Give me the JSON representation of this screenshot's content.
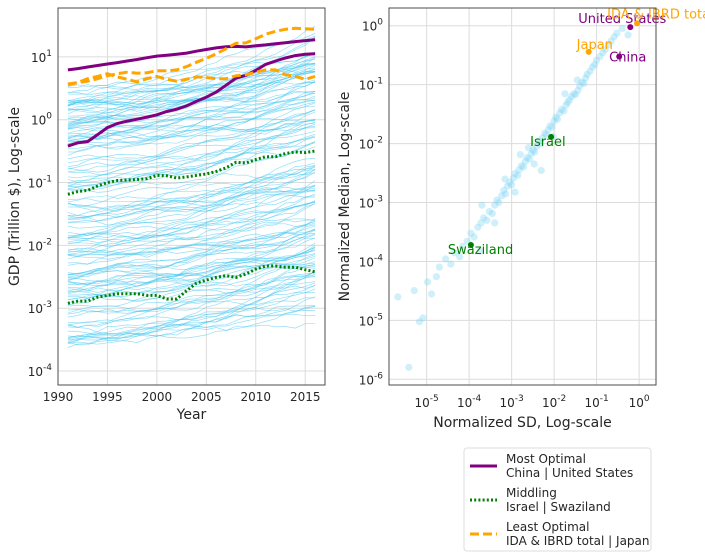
{
  "chart_data": [
    {
      "type": "line",
      "xlabel": "Year",
      "ylabel": "GDP (Trillion $), Log-scale",
      "y_scale": "log",
      "xlim": [
        1990,
        2017
      ],
      "ylim": [
        6e-05,
        60
      ],
      "x_ticks": [
        "1990",
        "1995",
        "2000",
        "2005",
        "2010",
        "2015"
      ],
      "y_tick_exponents": [
        "-4",
        "-3",
        "-2",
        "-1",
        "0",
        "1"
      ],
      "grid": true,
      "background_lines_color": "#3ec5ef",
      "series": [
        {
          "name": "China",
          "group": "Most Optimal",
          "color": "#800080",
          "style": "solid",
          "x": [
            1991,
            1992,
            1993,
            1994,
            1995,
            1996,
            1997,
            1998,
            1999,
            2000,
            2001,
            2002,
            2003,
            2004,
            2005,
            2006,
            2007,
            2008,
            2009,
            2010,
            2011,
            2012,
            2013,
            2014,
            2015,
            2016
          ],
          "y": [
            0.38,
            0.43,
            0.45,
            0.58,
            0.75,
            0.87,
            0.95,
            1.02,
            1.1,
            1.2,
            1.35,
            1.47,
            1.66,
            1.96,
            2.28,
            2.75,
            3.55,
            4.6,
            5.1,
            6.1,
            7.6,
            8.6,
            9.6,
            10.5,
            11.0,
            11.2
          ]
        },
        {
          "name": "United States",
          "group": "Most Optimal",
          "color": "#800080",
          "style": "solid",
          "x": [
            1991,
            1992,
            1993,
            1994,
            1995,
            1996,
            1997,
            1998,
            1999,
            2000,
            2001,
            2002,
            2003,
            2004,
            2005,
            2006,
            2007,
            2008,
            2009,
            2010,
            2011,
            2012,
            2013,
            2014,
            2015,
            2016
          ],
          "y": [
            6.2,
            6.5,
            6.9,
            7.3,
            7.7,
            8.1,
            8.6,
            9.1,
            9.7,
            10.3,
            10.6,
            11.0,
            11.5,
            12.3,
            13.1,
            13.9,
            14.5,
            14.7,
            14.4,
            15.0,
            15.5,
            16.2,
            16.8,
            17.5,
            18.2,
            18.7
          ]
        },
        {
          "name": "Israel",
          "group": "Middling",
          "color": "#008000",
          "style": "dotted",
          "x": [
            1991,
            1992,
            1993,
            1994,
            1995,
            1996,
            1997,
            1998,
            1999,
            2000,
            2001,
            2002,
            2003,
            2004,
            2005,
            2006,
            2007,
            2008,
            2009,
            2010,
            2011,
            2012,
            2013,
            2014,
            2015,
            2016
          ],
          "y": [
            0.065,
            0.072,
            0.075,
            0.088,
            0.1,
            0.108,
            0.11,
            0.112,
            0.115,
            0.13,
            0.128,
            0.118,
            0.123,
            0.13,
            0.137,
            0.15,
            0.172,
            0.21,
            0.205,
            0.233,
            0.258,
            0.257,
            0.29,
            0.307,
            0.3,
            0.318
          ]
        },
        {
          "name": "Swaziland",
          "group": "Middling",
          "color": "#008000",
          "style": "dotted",
          "x": [
            1991,
            1992,
            1993,
            1994,
            1995,
            1996,
            1997,
            1998,
            1999,
            2000,
            2001,
            2002,
            2003,
            2004,
            2005,
            2006,
            2007,
            2008,
            2009,
            2010,
            2011,
            2012,
            2013,
            2014,
            2015,
            2016
          ],
          "y": [
            0.0012,
            0.0013,
            0.0013,
            0.0015,
            0.0016,
            0.0017,
            0.0017,
            0.0017,
            0.0016,
            0.0016,
            0.0014,
            0.0014,
            0.0019,
            0.0025,
            0.0028,
            0.0031,
            0.0033,
            0.0031,
            0.0035,
            0.0042,
            0.0047,
            0.0047,
            0.0045,
            0.0045,
            0.0041,
            0.0038
          ]
        },
        {
          "name": "IDA & IBRD total",
          "group": "Least Optimal",
          "color": "#ffa500",
          "style": "dashed",
          "x": [
            1991,
            1992,
            1993,
            1994,
            1995,
            1996,
            1997,
            1998,
            1999,
            2000,
            2001,
            2002,
            2003,
            2004,
            2005,
            2006,
            2007,
            2008,
            2009,
            2010,
            2011,
            2012,
            2013,
            2014,
            2015,
            2016
          ],
          "y": [
            3.7,
            3.9,
            4.1,
            4.5,
            5.0,
            5.4,
            5.7,
            5.5,
            5.6,
            6.0,
            6.0,
            6.2,
            7.0,
            8.2,
            9.5,
            11.2,
            13.5,
            16.5,
            16.7,
            19.5,
            23.0,
            25.5,
            27.5,
            28.5,
            28.0,
            27.5
          ]
        },
        {
          "name": "Japan",
          "group": "Least Optimal",
          "color": "#ffa500",
          "style": "dashed",
          "x": [
            1991,
            1992,
            1993,
            1994,
            1995,
            1996,
            1997,
            1998,
            1999,
            2000,
            2001,
            2002,
            2003,
            2004,
            2005,
            2006,
            2007,
            2008,
            2009,
            2010,
            2011,
            2012,
            2013,
            2014,
            2015,
            2016
          ],
          "y": [
            3.6,
            3.9,
            4.5,
            4.9,
            5.4,
            4.8,
            4.4,
            4.0,
            4.5,
            4.9,
            4.4,
            4.1,
            4.4,
            4.8,
            4.7,
            4.5,
            4.5,
            5.0,
            5.2,
            5.7,
            6.2,
            6.2,
            5.2,
            4.9,
            4.4,
            4.9
          ]
        }
      ]
    },
    {
      "type": "scatter",
      "xlabel": "Normalized SD, Log-scale",
      "ylabel": "Normalized Median, Log-scale",
      "x_scale": "log",
      "y_scale": "log",
      "xlim": [
        1.3e-06,
        2.5
      ],
      "ylim": [
        8e-07,
        2
      ],
      "x_tick_exponents": [
        "-5",
        "-4",
        "-3",
        "-2",
        "-1",
        "0"
      ],
      "y_tick_exponents": [
        "-6",
        "-5",
        "-4",
        "-3",
        "-2",
        "-1",
        "0"
      ],
      "grid": true,
      "background_points_color": "#87d8f5",
      "background_points": [
        [
          2.1e-06,
          2.5e-05
        ],
        [
          3.8e-06,
          1.6e-06
        ],
        [
          6.8e-06,
          9.5e-06
        ],
        [
          8.2e-06,
          1.1e-05
        ],
        [
          5.1e-06,
          3.2e-05
        ],
        [
          1.05e-05,
          4.5e-05
        ],
        [
          1.3e-05,
          2.8e-05
        ],
        [
          1.7e-05,
          5.5e-05
        ],
        [
          2e-05,
          8e-05
        ],
        [
          2.8e-05,
          0.00011
        ],
        [
          3.7e-05,
          9e-05
        ],
        [
          4.5e-05,
          0.00014
        ],
        [
          6e-05,
          0.00012
        ],
        [
          7e-05,
          0.00018
        ],
        [
          9e-05,
          0.00022
        ],
        [
          0.00011,
          0.0003
        ],
        [
          0.00013,
          0.00026
        ],
        [
          0.00016,
          0.00038
        ],
        [
          0.00019,
          0.00045
        ],
        [
          0.00022,
          0.00055
        ],
        [
          0.00026,
          0.0005
        ],
        [
          0.0003,
          0.0007
        ],
        [
          0.00035,
          0.00065
        ],
        [
          0.0004,
          0.0009
        ],
        [
          0.00045,
          0.0011
        ],
        [
          0.0005,
          0.001
        ],
        [
          0.00058,
          0.0013
        ],
        [
          0.00065,
          0.0016
        ],
        [
          0.00072,
          0.0014
        ],
        [
          0.0008,
          0.0019
        ],
        [
          0.0009,
          0.0022
        ],
        [
          0.001,
          0.002
        ],
        [
          0.0011,
          0.0026
        ],
        [
          0.0012,
          0.0031
        ],
        [
          0.0014,
          0.0029
        ],
        [
          0.0015,
          0.0036
        ],
        [
          0.0017,
          0.0042
        ],
        [
          0.0019,
          0.004
        ],
        [
          0.0021,
          0.005
        ],
        [
          0.0023,
          0.0058
        ],
        [
          0.0026,
          0.0055
        ],
        [
          0.0029,
          0.0068
        ],
        [
          0.0032,
          0.0078
        ],
        [
          0.0035,
          0.0072
        ],
        [
          0.0039,
          0.009
        ],
        [
          0.0043,
          0.011
        ],
        [
          0.0048,
          0.01
        ],
        [
          0.0053,
          0.0125
        ],
        [
          0.006,
          0.015
        ],
        [
          0.0066,
          0.014
        ],
        [
          0.0072,
          0.017
        ],
        [
          0.008,
          0.02
        ],
        [
          0.009,
          0.019
        ],
        [
          0.01,
          0.024
        ],
        [
          0.011,
          0.028
        ],
        [
          0.012,
          0.026
        ],
        [
          0.0135,
          0.033
        ],
        [
          0.015,
          0.038
        ],
        [
          0.017,
          0.036
        ],
        [
          0.019,
          0.045
        ],
        [
          0.021,
          0.05
        ],
        [
          0.023,
          0.055
        ],
        [
          0.026,
          0.063
        ],
        [
          0.029,
          0.07
        ],
        [
          0.032,
          0.068
        ],
        [
          0.036,
          0.08
        ],
        [
          0.04,
          0.095
        ],
        [
          0.045,
          0.11
        ],
        [
          0.05,
          0.105
        ],
        [
          0.055,
          0.13
        ],
        [
          0.06,
          0.15
        ],
        [
          0.07,
          0.17
        ],
        [
          0.08,
          0.2
        ],
        [
          0.09,
          0.22
        ],
        [
          0.1,
          0.26
        ],
        [
          0.12,
          0.3
        ],
        [
          0.14,
          0.35
        ],
        [
          0.16,
          0.4
        ],
        [
          0.19,
          0.48
        ],
        [
          0.22,
          0.55
        ],
        [
          0.26,
          0.65
        ],
        [
          0.3,
          0.75
        ],
        [
          0.4,
          0.9
        ],
        [
          0.55,
          0.7
        ],
        [
          0.0004,
          0.00045
        ],
        [
          0.0012,
          0.0015
        ],
        [
          0.0034,
          0.0045
        ],
        [
          0.0095,
          0.013
        ],
        [
          0.00018,
          0.00015
        ],
        [
          0.0025,
          0.0085
        ],
        [
          0.0007,
          0.0025
        ],
        [
          0.005,
          0.0035
        ],
        [
          0.018,
          0.07
        ],
        [
          0.035,
          0.12
        ],
        [
          0.0002,
          0.0009
        ],
        [
          0.0016,
          0.0065
        ]
      ],
      "highlights": [
        {
          "name": "United States",
          "x": 0.62,
          "y": 0.95,
          "color": "#800080"
        },
        {
          "name": "China",
          "x": 0.34,
          "y": 0.3,
          "color": "#800080"
        },
        {
          "name": "IDA & IBRD total",
          "x": 0.9,
          "y": 1.1,
          "color": "#ffa500"
        },
        {
          "name": "Japan",
          "x": 0.065,
          "y": 0.36,
          "color": "#ffa500"
        },
        {
          "name": "Israel",
          "x": 0.0085,
          "y": 0.013,
          "color": "#008000"
        },
        {
          "name": "Swaziland",
          "x": 0.00011,
          "y": 0.00019,
          "color": "#008000"
        }
      ]
    }
  ],
  "legend": {
    "placement": "bottom-right",
    "items": [
      {
        "line1": " Most Optimal",
        "line2": "China | United States",
        "color": "#800080",
        "style": "solid"
      },
      {
        "line1": "Middling",
        "line2": "Israel | Swaziland",
        "color": "#008000",
        "style": "dotted"
      },
      {
        "line1": "Least Optimal",
        "line2": "IDA & IBRD total | Japan",
        "color": "#ffa500",
        "style": "dashed"
      }
    ]
  }
}
